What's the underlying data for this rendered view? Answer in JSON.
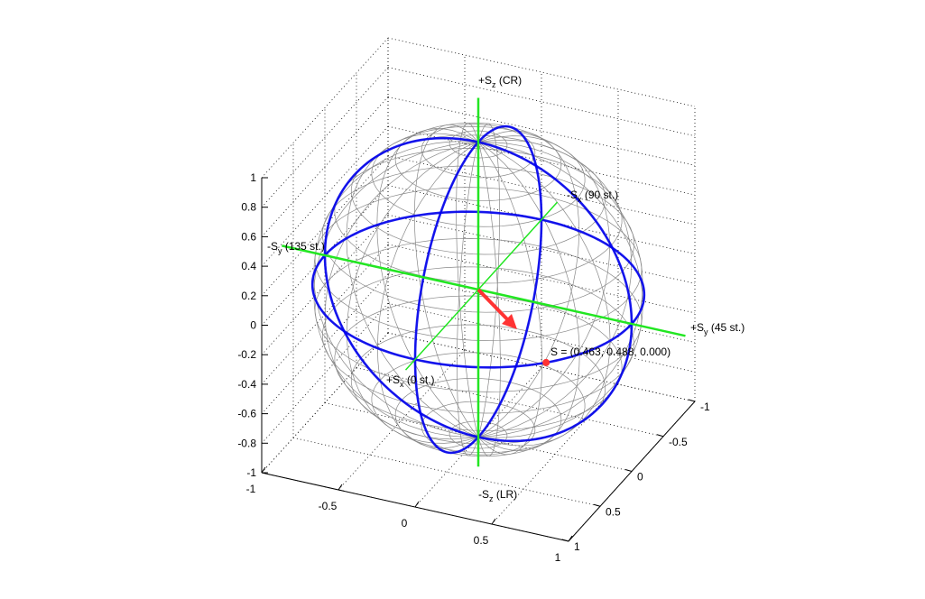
{
  "chart_data": {
    "type": "3d-sphere",
    "title": "",
    "xlim": [
      -1,
      1
    ],
    "ylim": [
      -1,
      1
    ],
    "zlim": [
      -1,
      1
    ],
    "x_ticks": [
      "-1",
      "-0.5",
      "0",
      "0.5",
      "1"
    ],
    "y_ticks": [
      "1",
      "0.5",
      "0",
      "-0.5",
      "-1"
    ],
    "z_ticks": [
      "1",
      "0.8",
      "0.6",
      "0.4",
      "0.2",
      "0",
      "-0.2",
      "-0.4",
      "-0.6",
      "-0.8",
      "-1"
    ],
    "grid": true,
    "axis_labels": {
      "sz_pos": "+S",
      "sz_pos_sub": "z",
      "sz_pos_note": " (CR)",
      "sz_neg": "-S",
      "sz_neg_sub": "z",
      "sz_neg_note": " (LR)",
      "sy_pos": "+S",
      "sy_pos_sub": "y",
      "sy_pos_note": " (45 st.)",
      "sy_neg": "-S",
      "sy_neg_sub": "y",
      "sy_neg_note": " (135 st.)",
      "sx_pos": "+S",
      "sx_pos_sub": "x",
      "sx_pos_note": " (0 st.)",
      "sx_neg": "-S",
      "sx_neg_sub": "x",
      "sx_neg_note": " (90 st.)"
    },
    "point": {
      "label": "S = (0.463, 0.488, 0.000)",
      "sx": 0.463,
      "sy": 0.488,
      "sz": 0.0
    },
    "colors": {
      "axes": "#22e622",
      "great_circles": "#0000ee",
      "wireframe": "#888888",
      "vector": "#ff3333"
    }
  }
}
